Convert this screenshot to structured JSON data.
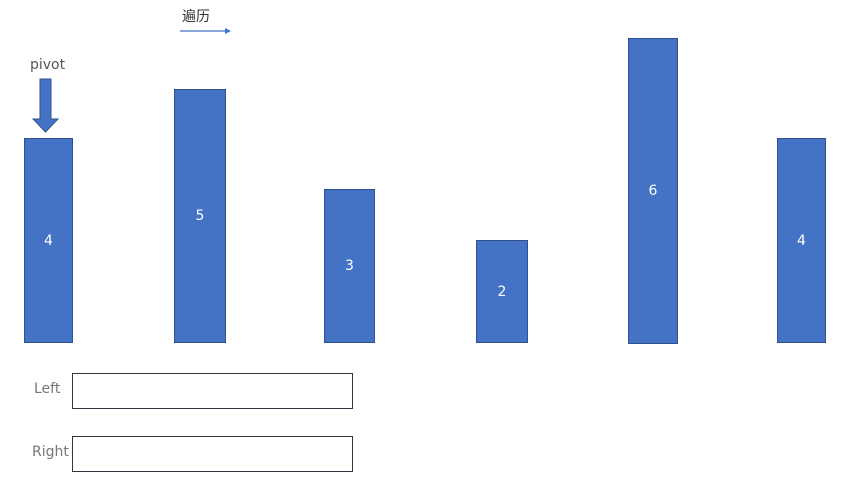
{
  "traverse_label": "遍历",
  "pivot_label": "pivot",
  "bars": [
    "4",
    "5",
    "3",
    "2",
    "6",
    "4"
  ],
  "rows": {
    "left_label": "Left",
    "right_label": "Right"
  },
  "colors": {
    "bar_fill": "#4472c4",
    "bar_border": "#2f528f",
    "arrow": "#4472c4"
  }
}
